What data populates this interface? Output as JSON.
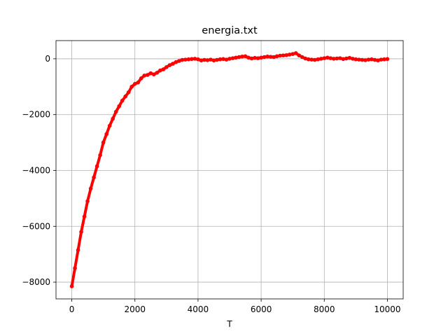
{
  "chart_data": {
    "type": "scatter",
    "title": "energia.txt",
    "xlabel": "T",
    "ylabel": "",
    "xlim": [
      -500,
      10500
    ],
    "ylim": [
      -8600,
      650
    ],
    "xticks": [
      0,
      2000,
      4000,
      6000,
      8000,
      10000
    ],
    "yticks": [
      -8000,
      -6000,
      -4000,
      -2000,
      0
    ],
    "xtick_labels": [
      "0",
      "2000",
      "4000",
      "6000",
      "8000",
      "10000"
    ],
    "ytick_labels": [
      "−8000",
      "−6000",
      "−4000",
      "−2000",
      "0"
    ],
    "grid": true,
    "color": "#ff0000",
    "series": [
      {
        "x": [
          0,
          100,
          200,
          300,
          400,
          500,
          600,
          700,
          800,
          900,
          1000,
          1100,
          1200,
          1300,
          1400,
          1500,
          1600,
          1700,
          1800,
          1900,
          2000,
          2100,
          2200,
          2300,
          2400,
          2500,
          2600,
          2700,
          2800,
          2900,
          3000,
          3100,
          3200,
          3300,
          3400,
          3500,
          3600,
          3700,
          3800,
          3900,
          4000,
          4100,
          4200,
          4300,
          4400,
          4500,
          4600,
          4700,
          4800,
          4900,
          5000,
          5100,
          5200,
          5300,
          5400,
          5500,
          5600,
          5700,
          5800,
          5900,
          6000,
          6100,
          6200,
          6300,
          6400,
          6500,
          6600,
          6700,
          6800,
          6900,
          7000,
          7100,
          7200,
          7300,
          7400,
          7500,
          7600,
          7700,
          7800,
          7900,
          8000,
          8100,
          8200,
          8300,
          8400,
          8500,
          8600,
          8700,
          8800,
          8900,
          9000,
          9100,
          9200,
          9300,
          9400,
          9500,
          9600,
          9700,
          9800,
          9900,
          10000
        ],
        "values": [
          -8150,
          -7500,
          -6850,
          -6200,
          -5650,
          -5100,
          -4650,
          -4250,
          -3850,
          -3450,
          -3000,
          -2700,
          -2400,
          -2150,
          -1900,
          -1700,
          -1500,
          -1350,
          -1200,
          -1000,
          -900,
          -850,
          -700,
          -600,
          -580,
          -520,
          -560,
          -500,
          -420,
          -380,
          -300,
          -230,
          -180,
          -120,
          -80,
          -40,
          -30,
          -20,
          -10,
          0,
          -20,
          -60,
          -40,
          -50,
          -30,
          -60,
          -40,
          -20,
          -10,
          -30,
          0,
          20,
          40,
          60,
          80,
          90,
          40,
          10,
          30,
          20,
          40,
          60,
          80,
          70,
          60,
          90,
          110,
          120,
          130,
          150,
          170,
          200,
          120,
          60,
          10,
          -20,
          -30,
          -40,
          -20,
          0,
          20,
          40,
          20,
          0,
          10,
          20,
          -10,
          10,
          30,
          0,
          -20,
          -30,
          -40,
          -50,
          -30,
          -20,
          -40,
          -60,
          -30,
          -20,
          -10
        ]
      }
    ]
  }
}
